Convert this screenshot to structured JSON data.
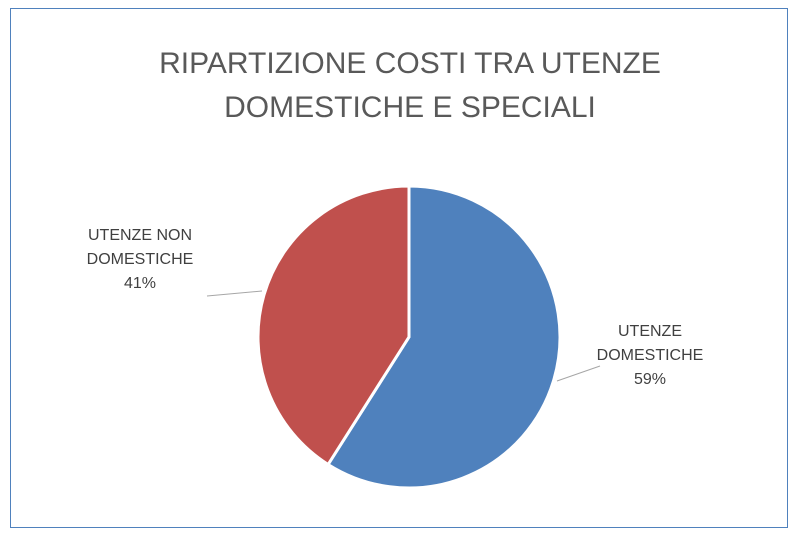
{
  "chart_data": {
    "type": "pie",
    "title": "RIPARTIZIONE COSTI TRA UTENZE DOMESTICHE E SPECIALI",
    "categories": [
      "UTENZE DOMESTICHE",
      "UTENZE NON DOMESTICHE"
    ],
    "values": [
      59,
      41
    ],
    "value_labels": [
      "59%",
      "41%"
    ],
    "colors": [
      "#4f81bd",
      "#c0504d"
    ]
  }
}
